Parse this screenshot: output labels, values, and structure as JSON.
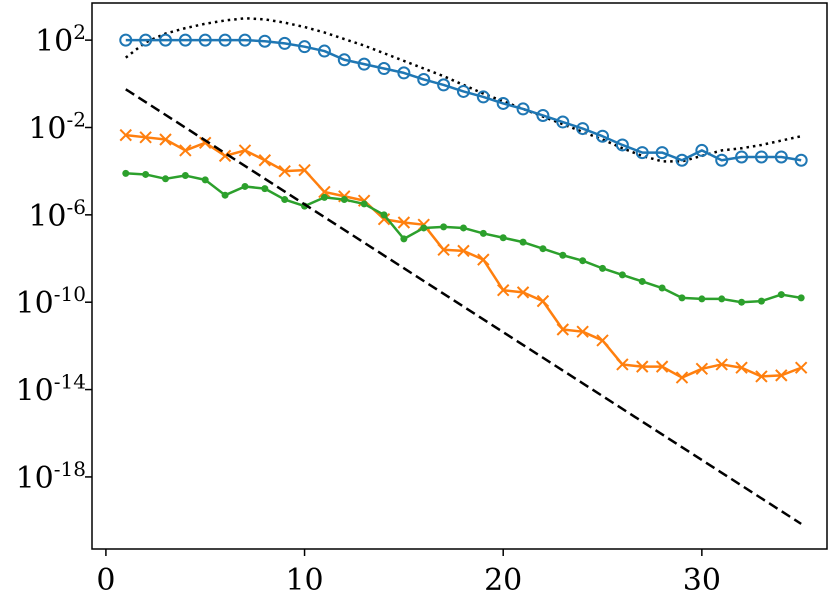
{
  "chart_data": {
    "type": "line",
    "title": "",
    "xlabel": "",
    "ylabel": "",
    "yscale": "log",
    "xlim": [
      -0.7,
      36.3
    ],
    "ylim_log10": [
      -21.3,
      3.7
    ],
    "grid": false,
    "legend": "none",
    "x_ticks": [
      0,
      10,
      20,
      30
    ],
    "x_tick_labels": [
      "0",
      "10",
      "20",
      "30"
    ],
    "y_ticks_log10": [
      2,
      -2,
      -6,
      -10,
      -14,
      -18
    ],
    "y_tick_labels": [
      {
        "base": "10",
        "exp": "2"
      },
      {
        "base": "10",
        "exp": "-2"
      },
      {
        "base": "10",
        "exp": "-6"
      },
      {
        "base": "10",
        "exp": "-10"
      },
      {
        "base": "10",
        "exp": "-14"
      },
      {
        "base": "10",
        "exp": "-18"
      }
    ],
    "series": [
      {
        "name": "dotted-reference",
        "color": "#000000",
        "style": "dotted",
        "marker": "none",
        "x": [
          1,
          2,
          3,
          4,
          5,
          6,
          7,
          8,
          9,
          10,
          11,
          12,
          13,
          14,
          15,
          16,
          17,
          18,
          19,
          20,
          21,
          22,
          23,
          24,
          25,
          26,
          27,
          28,
          29,
          30,
          31,
          32,
          33,
          34,
          35
        ],
        "log10_y": [
          1.2,
          1.9,
          2.3,
          2.55,
          2.75,
          2.9,
          3.0,
          2.95,
          2.8,
          2.6,
          2.35,
          2.05,
          1.75,
          1.4,
          1.05,
          0.7,
          0.35,
          -0.05,
          -0.45,
          -0.8,
          -1.15,
          -1.5,
          -1.85,
          -2.2,
          -2.55,
          -2.95,
          -3.3,
          -3.55,
          -3.55,
          -3.3,
          -3.05,
          -2.95,
          -2.8,
          -2.6,
          -2.4
        ]
      },
      {
        "name": "blue-circles",
        "color": "#1f77b4",
        "style": "solid",
        "marker": "circle",
        "x": [
          1,
          2,
          3,
          4,
          5,
          6,
          7,
          8,
          9,
          10,
          11,
          12,
          13,
          14,
          15,
          16,
          17,
          18,
          19,
          20,
          21,
          22,
          23,
          24,
          25,
          26,
          27,
          28,
          29,
          30,
          31,
          32,
          33,
          34,
          35
        ],
        "log10_y": [
          2.0,
          2.0,
          2.0,
          2.0,
          2.0,
          2.0,
          2.0,
          1.95,
          1.85,
          1.7,
          1.5,
          1.1,
          0.9,
          0.7,
          0.5,
          0.2,
          -0.05,
          -0.35,
          -0.6,
          -0.9,
          -1.15,
          -1.45,
          -1.75,
          -2.05,
          -2.4,
          -2.8,
          -3.15,
          -3.15,
          -3.5,
          -3.05,
          -3.5,
          -3.35,
          -3.35,
          -3.35,
          -3.5
        ]
      },
      {
        "name": "orange-crosses",
        "color": "#ff7f0e",
        "style": "solid",
        "marker": "x",
        "x": [
          1,
          2,
          3,
          4,
          5,
          6,
          7,
          8,
          9,
          10,
          11,
          12,
          13,
          14,
          15,
          16,
          17,
          18,
          19,
          20,
          21,
          22,
          23,
          24,
          25,
          26,
          27,
          28,
          29,
          30,
          31,
          32,
          33,
          34,
          35
        ],
        "log10_y": [
          -2.35,
          -2.45,
          -2.55,
          -3.05,
          -2.7,
          -3.3,
          -3.05,
          -3.5,
          -4.0,
          -3.95,
          -4.95,
          -5.15,
          -5.35,
          -6.2,
          -6.35,
          -6.45,
          -7.6,
          -7.65,
          -8.05,
          -9.45,
          -9.55,
          -9.95,
          -11.25,
          -11.35,
          -11.75,
          -12.85,
          -12.95,
          -12.95,
          -13.45,
          -13.05,
          -12.85,
          -13.0,
          -13.4,
          -13.35,
          -13.0
        ]
      },
      {
        "name": "green-dots",
        "color": "#2ca02c",
        "style": "solid",
        "marker": "dot",
        "x": [
          1,
          2,
          3,
          4,
          5,
          6,
          7,
          8,
          9,
          10,
          11,
          12,
          13,
          14,
          15,
          16,
          17,
          18,
          19,
          20,
          21,
          22,
          23,
          24,
          25,
          26,
          27,
          28,
          29,
          30,
          31,
          32,
          33,
          34,
          35
        ],
        "log10_y": [
          -4.1,
          -4.15,
          -4.35,
          -4.2,
          -4.4,
          -5.1,
          -4.7,
          -4.8,
          -5.3,
          -5.6,
          -5.2,
          -5.3,
          -5.5,
          -6.0,
          -7.1,
          -6.6,
          -6.55,
          -6.6,
          -6.85,
          -7.05,
          -7.25,
          -7.55,
          -7.85,
          -8.1,
          -8.45,
          -8.75,
          -9.05,
          -9.35,
          -9.8,
          -9.85,
          -9.85,
          -10.0,
          -9.95,
          -9.65,
          -9.8
        ]
      },
      {
        "name": "dashed-reference",
        "color": "#000000",
        "style": "dashed",
        "marker": "none",
        "x": [
          1,
          35
        ],
        "log10_y": [
          -0.25,
          -20.15
        ]
      }
    ]
  }
}
